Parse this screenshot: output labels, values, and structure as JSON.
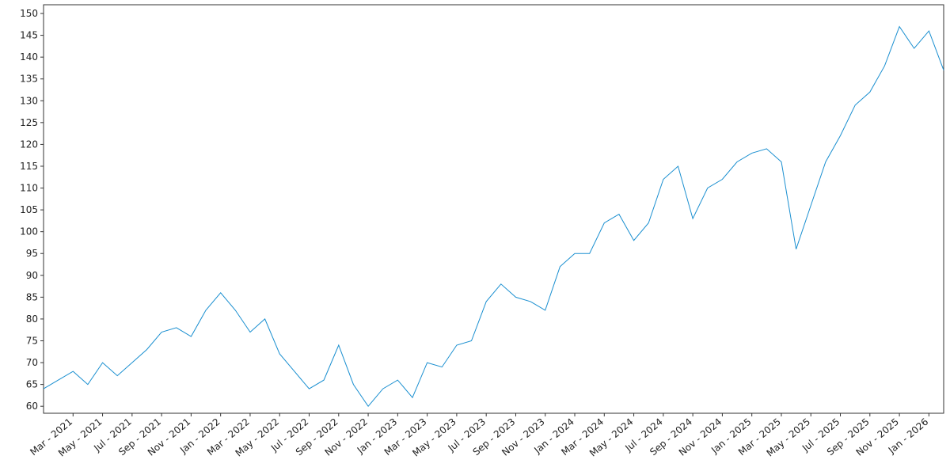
{
  "chart_data": {
    "type": "line",
    "x": [
      "2021-01",
      "2021-02",
      "2021-03",
      "2021-04",
      "2021-05",
      "2021-06",
      "2021-07",
      "2021-08",
      "2021-09",
      "2021-10",
      "2021-11",
      "2021-12",
      "2022-01",
      "2022-02",
      "2022-03",
      "2022-04",
      "2022-05",
      "2022-06",
      "2022-07",
      "2022-08",
      "2022-09",
      "2022-10",
      "2022-11",
      "2022-12",
      "2023-01",
      "2023-02",
      "2023-03",
      "2023-04",
      "2023-05",
      "2023-06",
      "2023-07",
      "2023-08",
      "2023-09",
      "2023-10",
      "2023-11",
      "2023-12",
      "2024-01",
      "2024-02",
      "2024-03",
      "2024-04",
      "2024-05",
      "2024-06",
      "2024-07",
      "2024-08",
      "2024-09",
      "2024-10",
      "2024-11",
      "2024-12",
      "2025-01",
      "2025-02",
      "2025-03",
      "2025-04",
      "2025-05",
      "2025-06",
      "2025-07",
      "2025-08",
      "2025-09",
      "2025-10",
      "2025-11",
      "2025-12",
      "2026-01",
      "2026-02"
    ],
    "series": [
      {
        "color": "#1a8fd0",
        "values": [
          64,
          66,
          68,
          65,
          70,
          67,
          70,
          73,
          77,
          78,
          76,
          82,
          86,
          82,
          77,
          80,
          72,
          68,
          64,
          66,
          74,
          65,
          60,
          64,
          66,
          62,
          70,
          69,
          74,
          75,
          84,
          88,
          85,
          84,
          82,
          92,
          95,
          95,
          102,
          104,
          98,
          102,
          112,
          115,
          103,
          110,
          112,
          116,
          118,
          119,
          116,
          96,
          106,
          116,
          122,
          129,
          132,
          138,
          147,
          142,
          146,
          137
        ]
      }
    ],
    "xlim": [
      "2021-01",
      "2026-02"
    ],
    "xticks": [
      {
        "value": "2021-03",
        "label": "Mar - 2021"
      },
      {
        "value": "2021-05",
        "label": "May - 2021"
      },
      {
        "value": "2021-07",
        "label": "Jul - 2021"
      },
      {
        "value": "2021-09",
        "label": "Sep - 2021"
      },
      {
        "value": "2021-11",
        "label": "Nov - 2021"
      },
      {
        "value": "2022-01",
        "label": "Jan - 2022"
      },
      {
        "value": "2022-03",
        "label": "Mar - 2022"
      },
      {
        "value": "2022-05",
        "label": "May - 2022"
      },
      {
        "value": "2022-07",
        "label": "Jul - 2022"
      },
      {
        "value": "2022-09",
        "label": "Sep - 2022"
      },
      {
        "value": "2022-11",
        "label": "Nov - 2022"
      },
      {
        "value": "2023-01",
        "label": "Jan - 2023"
      },
      {
        "value": "2023-03",
        "label": "Mar - 2023"
      },
      {
        "value": "2023-05",
        "label": "May - 2023"
      },
      {
        "value": "2023-07",
        "label": "Jul - 2023"
      },
      {
        "value": "2023-09",
        "label": "Sep - 2023"
      },
      {
        "value": "2023-11",
        "label": "Nov - 2023"
      },
      {
        "value": "2024-01",
        "label": "Jan - 2024"
      },
      {
        "value": "2024-03",
        "label": "Mar - 2024"
      },
      {
        "value": "2024-05",
        "label": "May - 2024"
      },
      {
        "value": "2024-07",
        "label": "Jul - 2024"
      },
      {
        "value": "2024-09",
        "label": "Sep - 2024"
      },
      {
        "value": "2024-11",
        "label": "Nov - 2024"
      },
      {
        "value": "2025-01",
        "label": "Jan - 2025"
      },
      {
        "value": "2025-03",
        "label": "Mar - 2025"
      },
      {
        "value": "2025-05",
        "label": "May - 2025"
      },
      {
        "value": "2025-07",
        "label": "Jul - 2025"
      },
      {
        "value": "2025-09",
        "label": "Sep - 2025"
      },
      {
        "value": "2025-11",
        "label": "Nov - 2025"
      },
      {
        "value": "2026-01",
        "label": "Jan - 2026"
      }
    ],
    "ylim": [
      58.4,
      152
    ],
    "yticks": [
      60,
      65,
      70,
      75,
      80,
      85,
      90,
      95,
      100,
      105,
      110,
      115,
      120,
      125,
      130,
      135,
      140,
      145,
      150
    ],
    "grid": false
  }
}
